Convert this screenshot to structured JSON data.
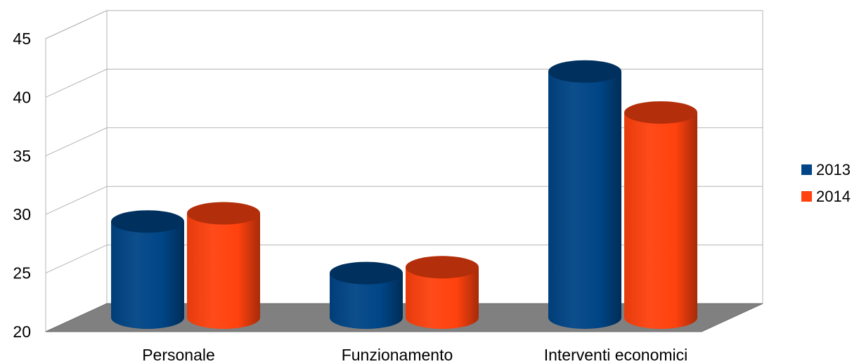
{
  "chart_data": {
    "type": "bar",
    "style": "3d-cylinder",
    "title": "",
    "xlabel": "",
    "ylabel": "",
    "categories": [
      "Personale",
      "Funzionamento",
      "Interventi economici"
    ],
    "series": [
      {
        "name": "2013",
        "values": [
          28.2,
          23.8,
          41.0
        ],
        "color": "#004586"
      },
      {
        "name": "2014",
        "values": [
          28.9,
          24.3,
          37.5
        ],
        "color": "#ff420e"
      }
    ],
    "ylim": [
      20,
      45
    ],
    "yticks": [
      "20",
      "25",
      "30",
      "35",
      "40",
      "45"
    ],
    "grid": true,
    "legend_position": "right",
    "colors": {
      "floor": "#808080",
      "grid": "#b3b3b3",
      "series_2013": "#004586",
      "series_2014": "#ff420e"
    }
  }
}
